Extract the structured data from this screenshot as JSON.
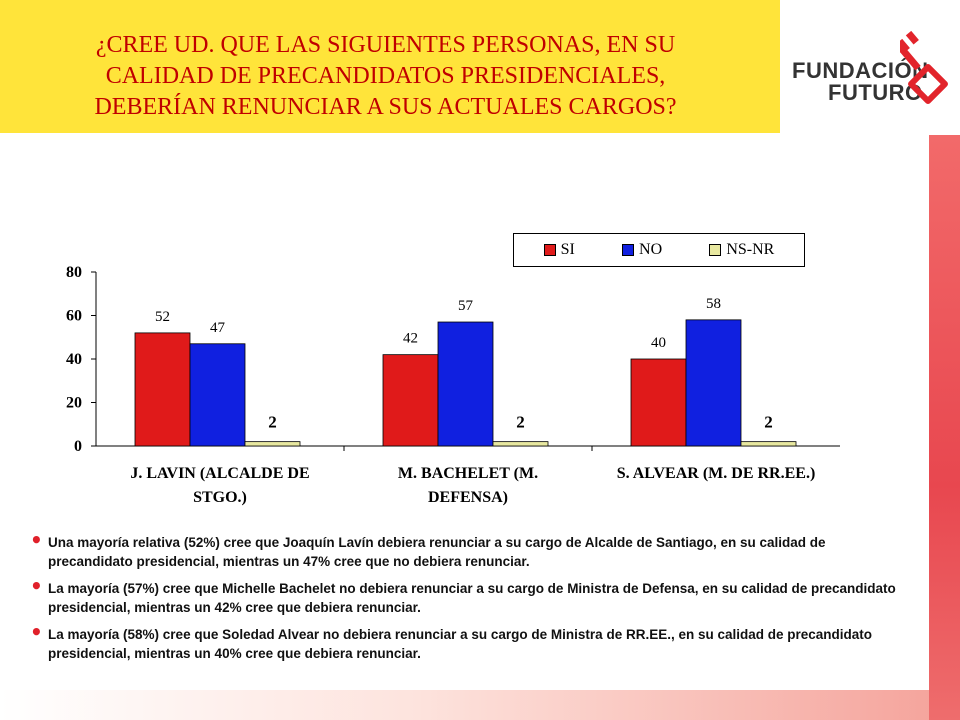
{
  "title": {
    "lines": [
      "¿CREE UD. QUE LAS SIGUIENTES PERSONAS, EN SU",
      "CALIDAD DE PRECANDIDATOS PRESIDENCIALES,",
      "DEBERÍAN RENUNCIAR A SUS ACTUALES CARGOS?"
    ]
  },
  "logo": {
    "line1": "FUNDACIÓN",
    "line2": "FUTURO",
    "key_icon": "key-icon"
  },
  "colors": {
    "title_bg": "#ffe43a",
    "title_text": "#c00000",
    "si": "#e01a1a",
    "no": "#1020e0",
    "nsnr": "#e8e8a0"
  },
  "chart_data": {
    "type": "bar",
    "categories": [
      [
        "J. LAVIN (ALCALDE DE",
        "STGO.)"
      ],
      [
        "M. BACHELET (M.",
        "DEFENSA)"
      ],
      [
        "S. ALVEAR (M. DE RR.EE.)"
      ]
    ],
    "series": [
      {
        "name": "SI",
        "color": "#e01a1a",
        "values": [
          52,
          42,
          40
        ],
        "labels": [
          "52",
          "42",
          "40"
        ]
      },
      {
        "name": "NO",
        "color": "#1020e0",
        "values": [
          47,
          57,
          58
        ],
        "labels": [
          "47",
          "57",
          "58"
        ]
      },
      {
        "name": "NS-NR",
        "color": "#e8e8a0",
        "values": [
          2,
          2,
          2
        ],
        "labels": [
          "2",
          "2",
          "2"
        ]
      }
    ],
    "ylim": [
      0,
      80
    ],
    "yticks": [
      "0",
      "20",
      "40",
      "60",
      "80"
    ],
    "legend_position": "top-right",
    "grid": false
  },
  "bullets": [
    "Una mayoría relativa (52%) cree que Joaquín Lavín debiera renunciar a su cargo de Alcalde de Santiago, en su calidad de precandidato presidencial, mientras un 47% cree que no debiera renunciar.",
    "La mayoría (57%) cree que Michelle Bachelet no debiera renunciar a su cargo de Ministra de Defensa, en su calidad de precandidato presidencial, mientras un 42% cree que debiera renunciar.",
    "La mayoría (58%) cree que Soledad Alvear no debiera renunciar a su cargo de Ministra de RR.EE., en su calidad de precandidato presidencial, mientras un 40% cree que debiera renunciar."
  ]
}
